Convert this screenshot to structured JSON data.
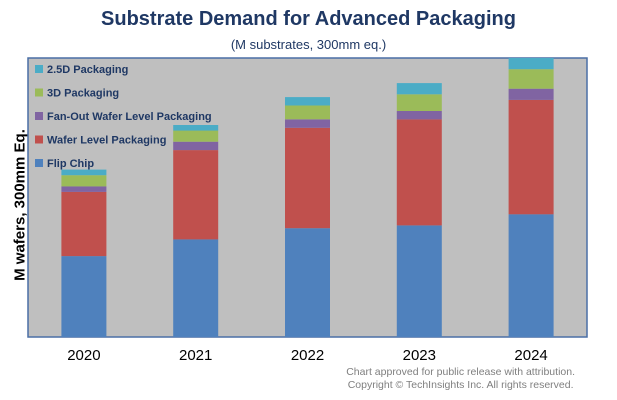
{
  "chart_data": {
    "type": "bar",
    "stacked": true,
    "title": "Substrate Demand for Advanced Packaging",
    "subtitle": "(M substrates, 300mm eq.)",
    "xlabel": "",
    "ylabel": "M wafers, 300mm Eq.",
    "ylim": [
      0,
      100
    ],
    "grid": false,
    "legend_position": "top-left",
    "categories": [
      "2020",
      "2021",
      "2022",
      "2023",
      "2024"
    ],
    "series": [
      {
        "name": "Flip Chip",
        "color": "#4f81bd",
        "values": [
          29,
          35,
          39,
          40,
          44
        ]
      },
      {
        "name": "Wafer Level Packaging",
        "color": "#c0504d",
        "values": [
          23,
          32,
          36,
          38,
          41
        ]
      },
      {
        "name": "Fan-Out Wafer Level Packaging",
        "color": "#8064a2",
        "values": [
          2,
          3,
          3,
          3,
          4
        ]
      },
      {
        "name": "3D Packaging",
        "color": "#9bbb59",
        "values": [
          4,
          4,
          5,
          6,
          7
        ]
      },
      {
        "name": "2.5D Packaging",
        "color": "#4bacc6",
        "values": [
          2,
          2,
          3,
          4,
          4
        ]
      }
    ]
  },
  "credit": {
    "line1": "Chart approved  for public release with attribution.",
    "line2": "Copyright © TechInsights  Inc.  All rights reserved."
  }
}
